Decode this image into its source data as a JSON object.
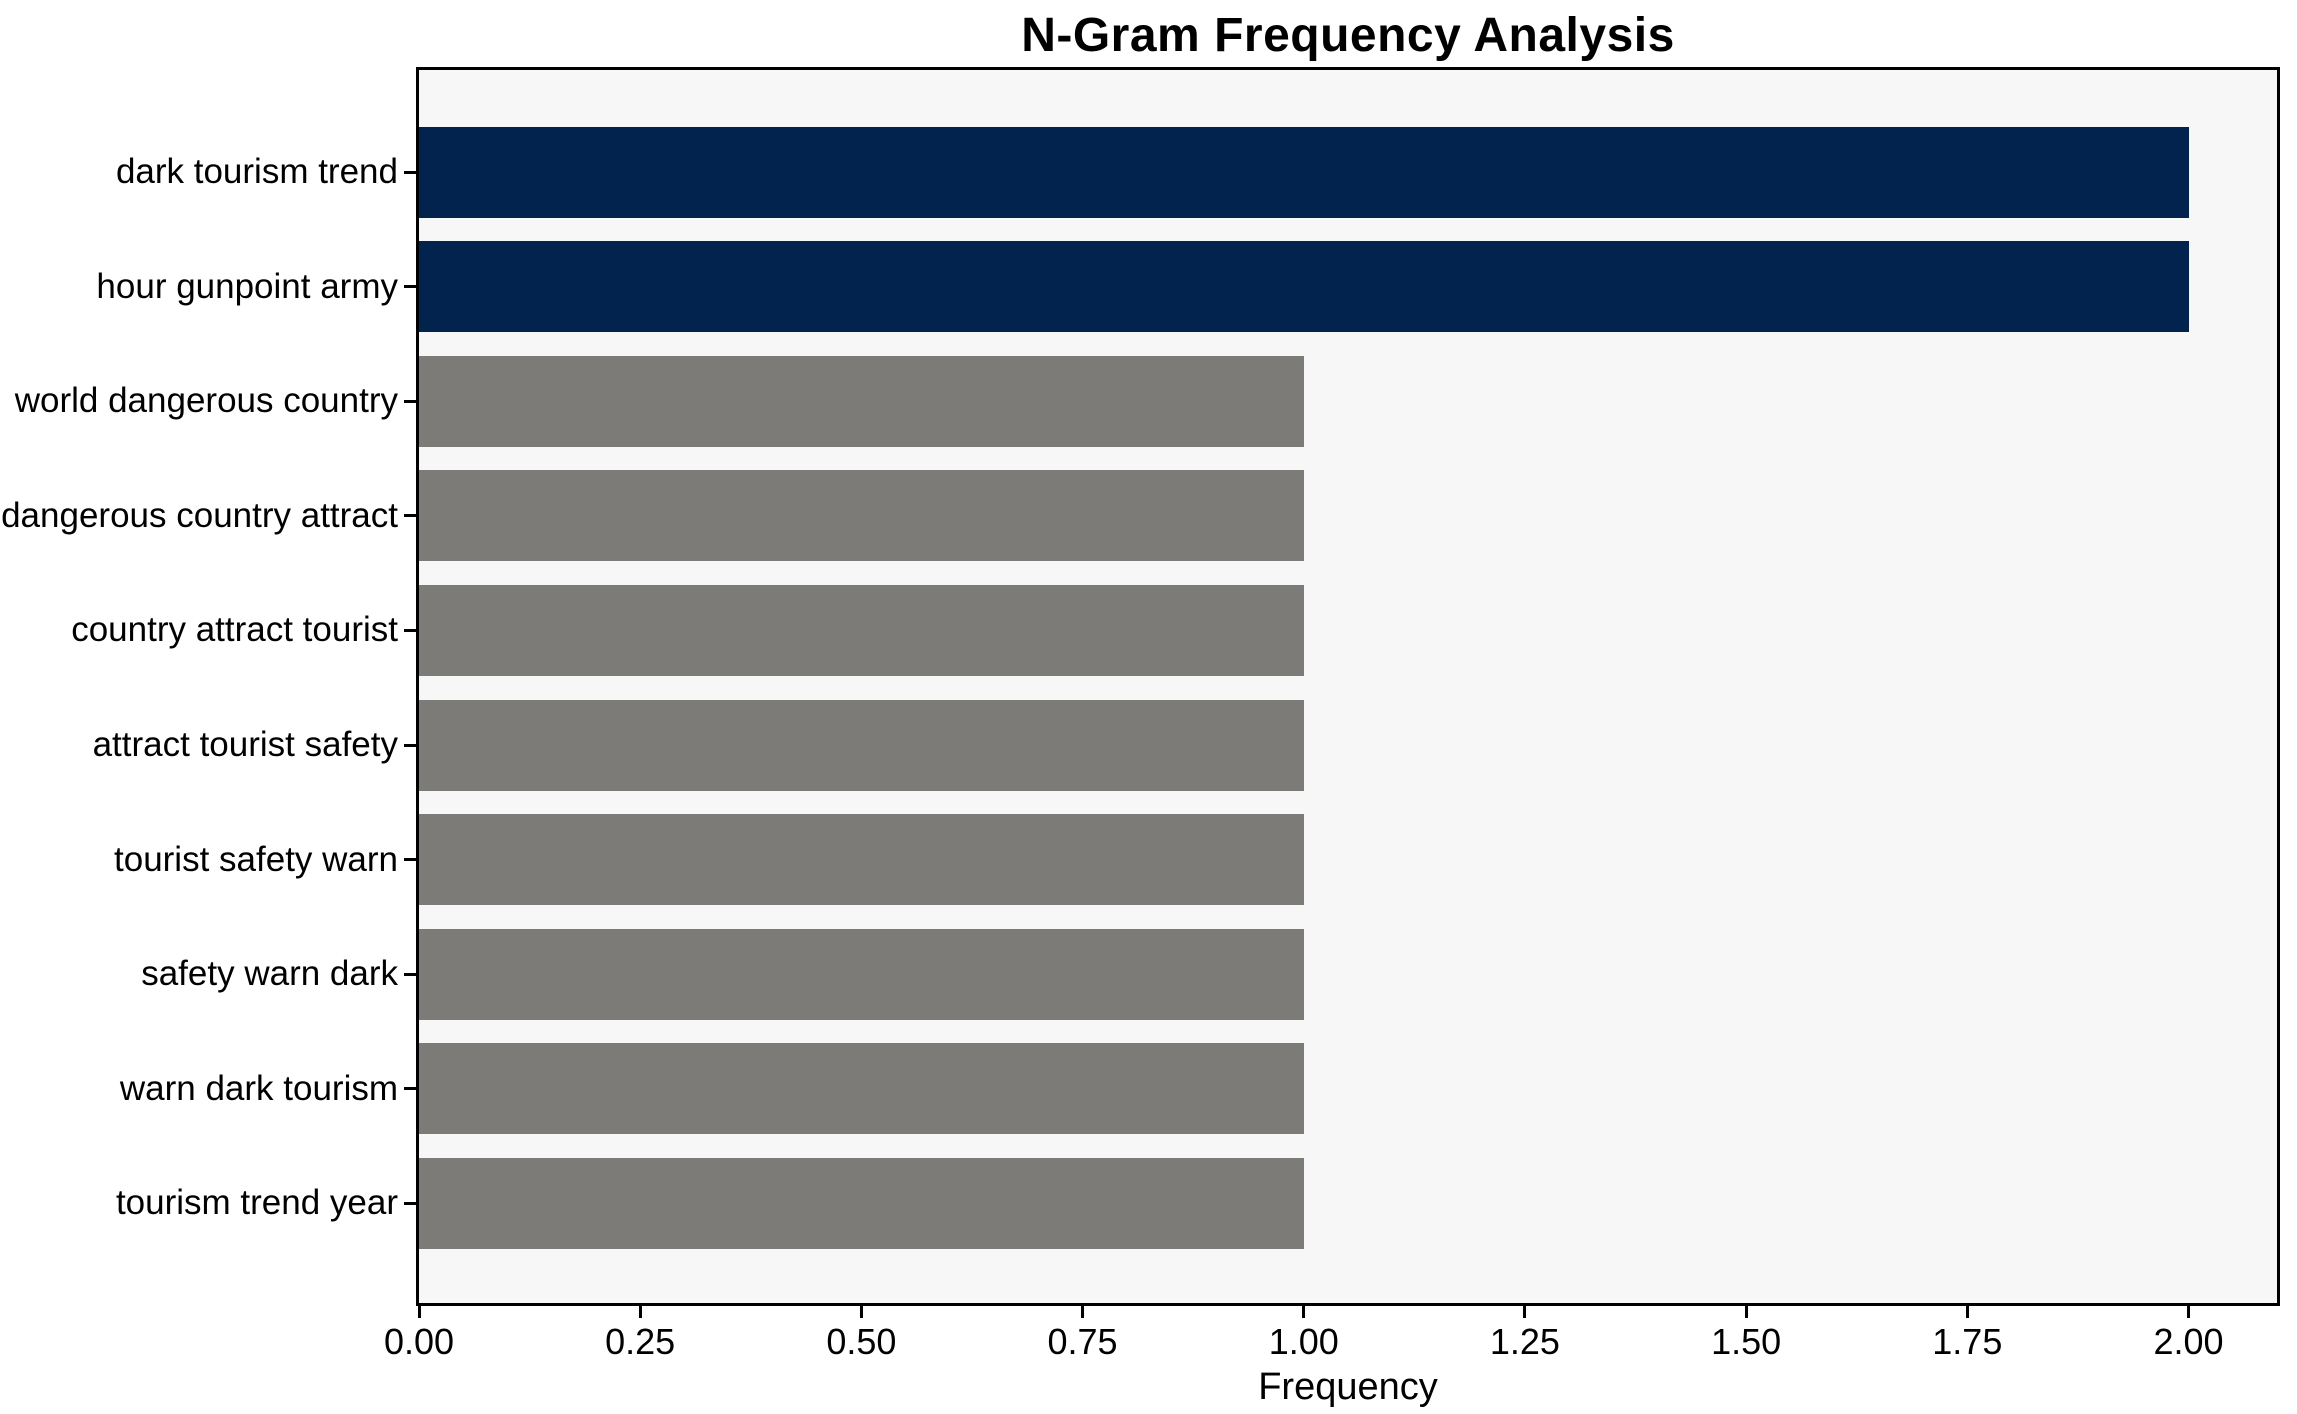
{
  "chart_data": {
    "type": "bar",
    "orientation": "horizontal",
    "title": "N-Gram Frequency Analysis",
    "xlabel": "Frequency",
    "ylabel": "",
    "categories": [
      "dark tourism trend",
      "hour gunpoint army",
      "world dangerous country",
      "dangerous country attract",
      "country attract tourist",
      "attract tourist safety",
      "tourist safety warn",
      "safety warn dark",
      "warn dark tourism",
      "tourism trend year"
    ],
    "values": [
      2,
      2,
      1,
      1,
      1,
      1,
      1,
      1,
      1,
      1
    ],
    "bar_colors": [
      "#02234d",
      "#02234d",
      "#7c7b78",
      "#7c7b78",
      "#7c7b78",
      "#7c7b78",
      "#7c7b78",
      "#7c7b78",
      "#7c7b78",
      "#7c7b78"
    ],
    "xlim": [
      0,
      2.1
    ],
    "x_ticks": [
      0,
      0.25,
      0.5,
      0.75,
      1.0,
      1.25,
      1.5,
      1.75,
      2.0
    ],
    "x_tick_labels": [
      "0.00",
      "0.25",
      "0.50",
      "0.75",
      "1.00",
      "1.25",
      "1.50",
      "1.75",
      "2.00"
    ],
    "grid": false,
    "legend": null,
    "colors": {
      "highlight_bar": "#02234d",
      "default_bar": "#7c7b78",
      "plot_background": "#f7f7f7",
      "figure_background": "#ffffff",
      "spine": "#000000",
      "text": "#000000"
    }
  }
}
